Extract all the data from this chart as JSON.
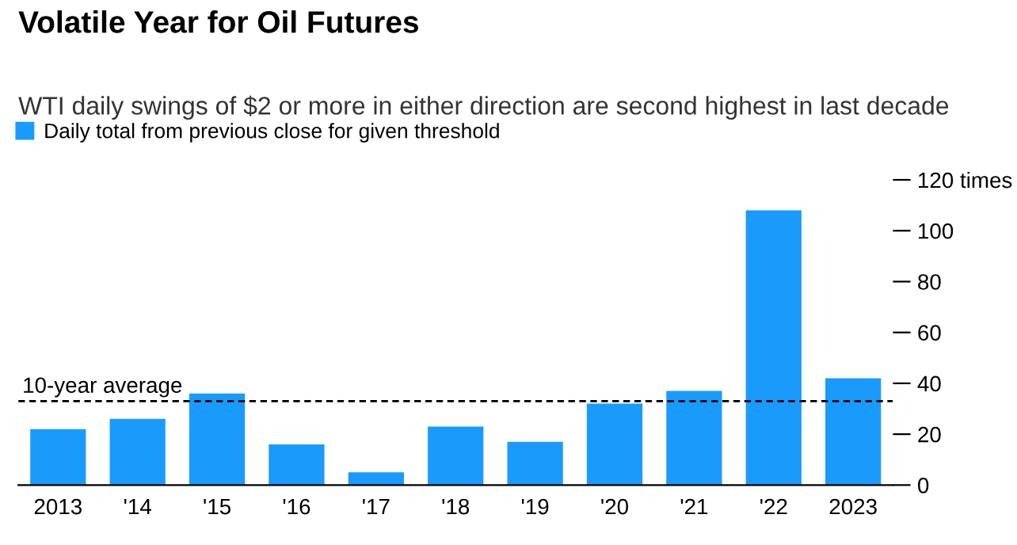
{
  "chart_data": {
    "type": "bar",
    "title": "Volatile Year for Oil Futures",
    "subtitle": "WTI daily swings of $2 or more in either direction are second highest in last decade",
    "categories": [
      "2013",
      "'14",
      "'15",
      "'16",
      "'17",
      "'18",
      "'19",
      "'20",
      "'21",
      "'22",
      "2023"
    ],
    "series": [
      {
        "name": "Daily total from previous close for given threshold",
        "color": "#1a9bfc",
        "values": [
          22,
          26,
          36,
          16,
          5,
          23,
          17,
          32,
          37,
          108,
          42
        ]
      }
    ],
    "ylim": [
      0,
      120
    ],
    "yticks": [
      0,
      20,
      40,
      60,
      80,
      100,
      {
        "value": 120,
        "label": "120 times"
      }
    ],
    "ref_lines": [
      {
        "axis": "y",
        "value": 33,
        "label": "10-year average",
        "color": "#000000",
        "line_style": "dashed"
      }
    ],
    "legend": "top left",
    "grid": false
  }
}
